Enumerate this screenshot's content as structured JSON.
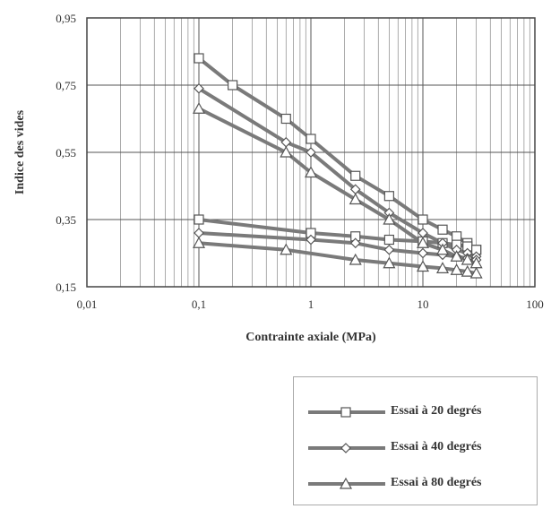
{
  "chart_data": {
    "type": "line",
    "xlabel": "Contrainte axiale (MPa)",
    "ylabel": "Indice des vides",
    "xscale": "log",
    "xlim": [
      0.01,
      100
    ],
    "ylim": [
      0.15,
      0.95
    ],
    "xticks": [
      0.01,
      0.1,
      1,
      10,
      100
    ],
    "xtick_labels": [
      "0,01",
      "0,1",
      "1",
      "10",
      "100"
    ],
    "yticks": [
      0.15,
      0.35,
      0.55,
      0.75,
      0.95
    ],
    "ytick_labels": [
      "0,15",
      "0,35",
      "0,55",
      "0,75",
      "0,95"
    ],
    "grid": true,
    "legend_position": "below-right",
    "series": [
      {
        "name": "Essai à 20 degrés",
        "marker": "square",
        "color": "#7a7a7a",
        "loading": {
          "x": [
            0.1,
            0.2,
            0.6,
            1,
            2.5,
            5,
            10,
            15,
            20,
            25,
            30
          ],
          "y": [
            0.83,
            0.75,
            0.65,
            0.59,
            0.48,
            0.42,
            0.35,
            0.32,
            0.3,
            0.28,
            0.26
          ]
        },
        "unloading": {
          "x": [
            0.1,
            1,
            2.5,
            5,
            10,
            15,
            20,
            25,
            30
          ],
          "y": [
            0.35,
            0.31,
            0.3,
            0.29,
            0.285,
            0.28,
            0.275,
            0.27,
            0.26
          ]
        }
      },
      {
        "name": "Essai à 40 degrés",
        "marker": "diamond",
        "color": "#7a7a7a",
        "loading": {
          "x": [
            0.1,
            0.6,
            1,
            2.5,
            5,
            10,
            15,
            20,
            25,
            30
          ],
          "y": [
            0.74,
            0.58,
            0.55,
            0.44,
            0.37,
            0.31,
            0.28,
            0.26,
            0.25,
            0.24
          ]
        },
        "unloading": {
          "x": [
            0.1,
            1,
            2.5,
            5,
            10,
            15,
            20,
            25,
            30
          ],
          "y": [
            0.31,
            0.29,
            0.28,
            0.26,
            0.25,
            0.245,
            0.24,
            0.235,
            0.23
          ]
        }
      },
      {
        "name": "Essai à 80 degrés",
        "marker": "triangle",
        "color": "#7a7a7a",
        "loading": {
          "x": [
            0.1,
            0.6,
            1,
            2.5,
            5,
            10,
            15,
            20,
            25,
            30
          ],
          "y": [
            0.68,
            0.55,
            0.49,
            0.41,
            0.35,
            0.28,
            0.26,
            0.24,
            0.23,
            0.22
          ]
        },
        "unloading": {
          "x": [
            0.1,
            0.6,
            2.5,
            5,
            10,
            15,
            20,
            25,
            30
          ],
          "y": [
            0.28,
            0.26,
            0.23,
            0.22,
            0.21,
            0.205,
            0.2,
            0.195,
            0.19
          ]
        }
      }
    ]
  }
}
